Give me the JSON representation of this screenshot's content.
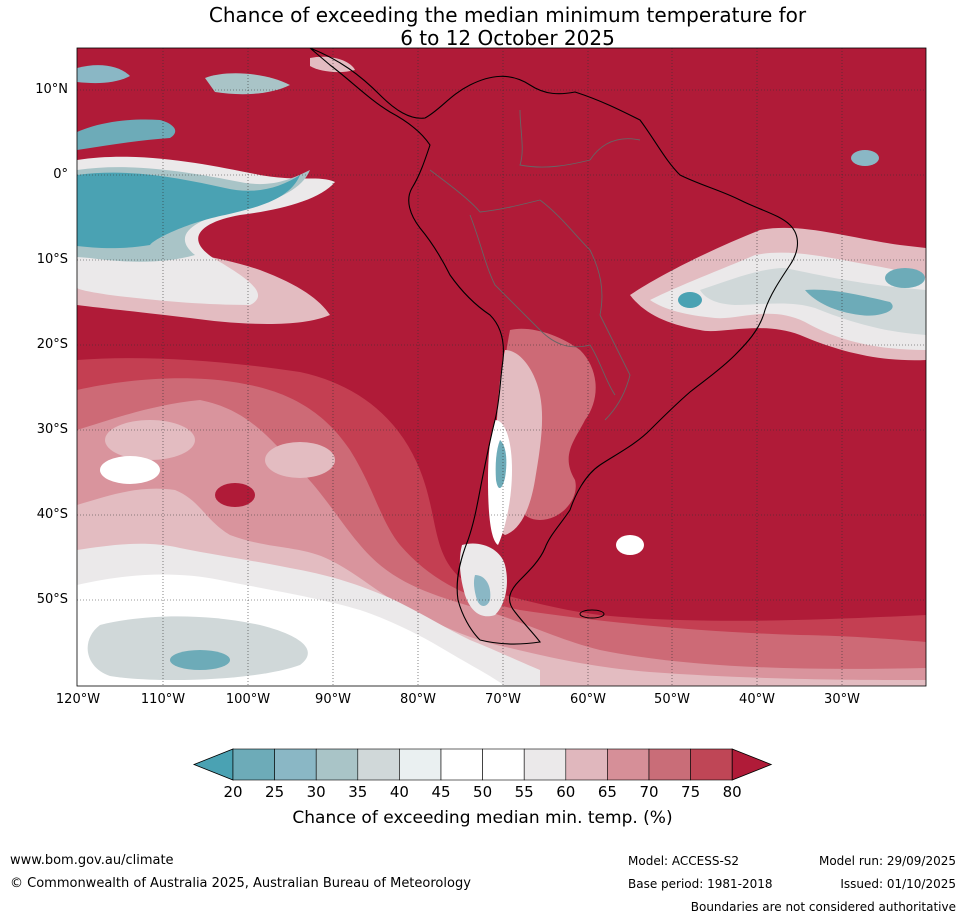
{
  "title": {
    "line1": "Chance of exceeding the median minimum temperature for",
    "line2": "6 to 12 October 2025"
  },
  "axes": {
    "lat_labels": [
      "10°N",
      "0°",
      "10°S",
      "20°S",
      "30°S",
      "40°S",
      "50°S"
    ],
    "lon_labels": [
      "120°W",
      "110°W",
      "100°W",
      "90°W",
      "80°W",
      "70°W",
      "60°W",
      "50°W",
      "40°W",
      "30°W"
    ]
  },
  "colorbar": {
    "ticks": [
      "20",
      "25",
      "30",
      "35",
      "40",
      "45",
      "50",
      "55",
      "60",
      "65",
      "70",
      "75",
      "80"
    ],
    "label": "Chance of exceeding median min. temp. (%)",
    "colors": [
      "#4aa2b3",
      "#6dabb8",
      "#8ab7c5",
      "#a9c4c7",
      "#d0d8d9",
      "#eaf0f1",
      "#ffffff",
      "#ffffff",
      "#ebe9ea",
      "#e0b7bd",
      "#d68f98",
      "#c96d78",
      "#bf4656",
      "#b01b38"
    ]
  },
  "footer": {
    "website": "www.bom.gov.au/climate",
    "copyright": "© Commonwealth of Australia 2025, Australian Bureau of Meteorology",
    "model": "Model: ACCESS-S2",
    "base_period": "Base period: 1981-2018",
    "model_run": "Model run: 29/09/2025",
    "issued": "Issued: 01/10/2025",
    "disclaimer": "Boundaries are not considered authoritative"
  }
}
